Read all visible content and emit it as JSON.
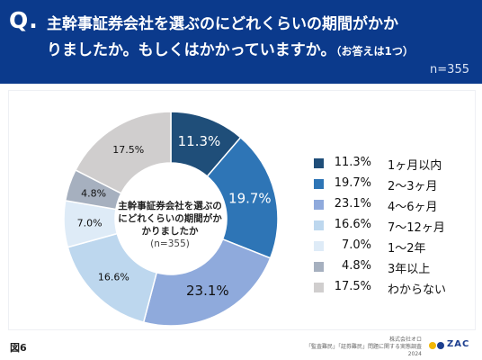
{
  "header": {
    "q_mark": "Q.",
    "question_line1": "主幹事証券会社を選ぶのにどれくらいの期間がかか",
    "question_line2": "りましたか。もしくはかかっていますか。",
    "question_note": "（お答えは1つ）",
    "sample_size": "n=355"
  },
  "chart_center": {
    "title": "主幹事証券会社を選ぶのにどれくらいの期間がかかりましたか",
    "n": "(n=355)"
  },
  "chart_data": {
    "type": "pie",
    "donut": true,
    "categories": [
      "1ヶ月以内",
      "2～3ヶ月",
      "4～6ヶ月",
      "7～12ヶ月",
      "1～2年",
      "3年以上",
      "わからない"
    ],
    "values": [
      11.3,
      19.7,
      23.1,
      16.6,
      7.0,
      4.8,
      17.5
    ],
    "value_labels": [
      "11.3%",
      "19.7%",
      "23.1%",
      "16.6%",
      "7.0%",
      "4.8%",
      "17.5%"
    ],
    "colors": [
      "#1f4e79",
      "#2e75b6",
      "#8faadc",
      "#bdd7ee",
      "#deebf7",
      "#a6b0bf",
      "#d0cece"
    ],
    "label_colors": [
      "#ffffff",
      "#ffffff",
      "#111111",
      "#111111",
      "#111111",
      "#111111",
      "#111111"
    ],
    "legend_position": "right"
  },
  "footer": {
    "figure_label": "図6",
    "source_line1": "株式会社オロ",
    "source_line2": "「監査難民」「証券難民」問題に関する実態調査2024",
    "logo_text": "ZAC",
    "logo_dot_colors": [
      "#f2b705",
      "#1d3f8f"
    ]
  }
}
